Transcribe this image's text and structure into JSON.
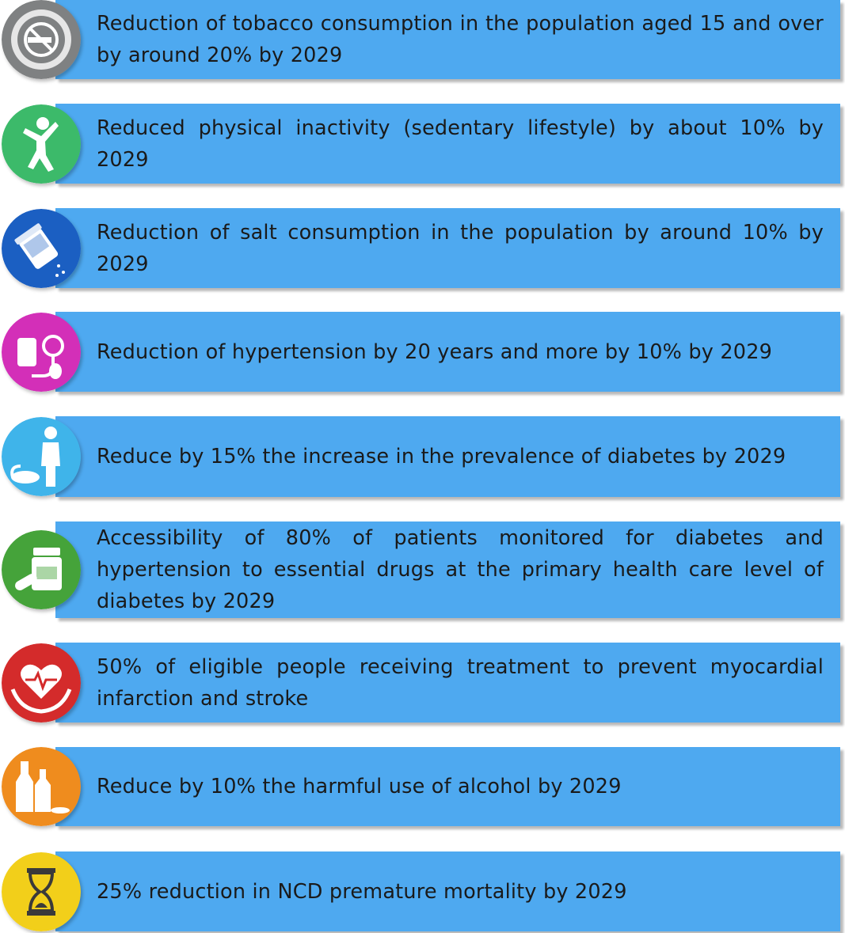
{
  "goals": [
    {
      "text": "Reduction of tobacco consumption in the population aged 15 and over by around 20% by 2029",
      "icon": "no-smoking-icon",
      "color": "#7f8182"
    },
    {
      "text": "Reduced physical inactivity (sedentary lifestyle) by about 10% by 2029",
      "icon": "exercise-icon",
      "color": "#3cba6a"
    },
    {
      "text": "Reduction of salt consumption in the population by around 10% by 2029",
      "icon": "salt-shaker-icon",
      "color": "#1b5fc2"
    },
    {
      "text": "Reduction of hypertension by 20 years and more by 10% by 2029",
      "icon": "blood-pressure-icon",
      "color": "#d32fb8"
    },
    {
      "text": "Reduce by 15% the increase in the prevalence of diabetes by 2029",
      "icon": "diabetes-icon",
      "color": "#3fb4ea"
    },
    {
      "text": "Accessibility of 80% of patients monitored for diabetes and hypertension to essential drugs at the primary health care level of diabetes by 2029",
      "icon": "medication-icon",
      "color": "#45a33a"
    },
    {
      "text": "50% of eligible people receiving treatment to prevent myocardial infarction and stroke",
      "icon": "heart-care-icon",
      "color": "#d42b2b"
    },
    {
      "text": "Reduce by 10% the harmful use of alcohol by 2029",
      "icon": "alcohol-icon",
      "color": "#ef8c1e"
    },
    {
      "text": "25% reduction in NCD premature mortality by 2029",
      "icon": "hourglass-icon",
      "color": "#f2cf1a"
    }
  ]
}
